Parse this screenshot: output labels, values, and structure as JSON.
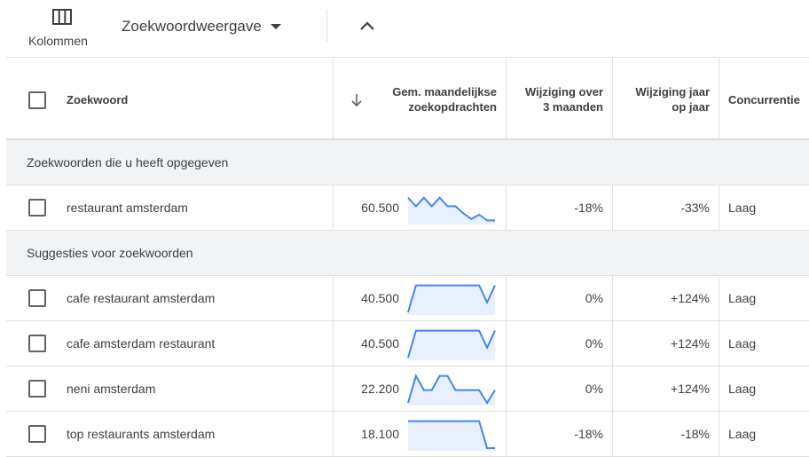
{
  "toolbar": {
    "columns_label": "Kolommen",
    "columns_icon": "columns-icon",
    "view_label": "Zoekwoordweergave",
    "view_icon": "dropdown-caret-icon",
    "collapse_icon": "chevron-up-icon"
  },
  "table": {
    "headers": {
      "keyword": "Zoekwoord",
      "sort_icon": "arrow-down-icon",
      "searches_line1": "Gem. maandelijkse",
      "searches_line2": "zoekopdrachten",
      "three_month_line1": "Wijziging over",
      "three_month_line2": "3 maanden",
      "yoy_line1": "Wijziging jaar",
      "yoy_line2": "op jaar",
      "competition": "Concurrentie"
    },
    "groups": [
      {
        "title": "Zoekwoorden die u heeft opgegeven",
        "rows": [
          {
            "keyword": "restaurant amsterdam",
            "searches": "60.500",
            "trend": [
              0.85,
              0.55,
              0.85,
              0.55,
              0.85,
              0.55,
              0.55,
              0.3,
              0.1,
              0.25,
              0.05,
              0.05
            ],
            "three_month": "-18%",
            "yoy": "-33%",
            "competition": "Laag"
          }
        ]
      },
      {
        "title": "Suggesties voor zoekwoorden",
        "rows": [
          {
            "keyword": "cafe restaurant amsterdam",
            "searches": "40.500",
            "trend": [
              0.0,
              0.95,
              0.95,
              0.95,
              0.95,
              0.95,
              0.95,
              0.95,
              0.95,
              0.95,
              0.35,
              0.95
            ],
            "three_month": "0%",
            "yoy": "+124%",
            "competition": "Laag"
          },
          {
            "keyword": "cafe amsterdam restaurant",
            "searches": "40.500",
            "trend": [
              0.0,
              0.95,
              0.95,
              0.95,
              0.95,
              0.95,
              0.95,
              0.95,
              0.95,
              0.95,
              0.35,
              0.95
            ],
            "three_month": "0%",
            "yoy": "+124%",
            "competition": "Laag"
          },
          {
            "keyword": "neni amsterdam",
            "searches": "22.200",
            "trend": [
              0.0,
              0.95,
              0.45,
              0.45,
              0.95,
              0.95,
              0.45,
              0.45,
              0.45,
              0.45,
              0.0,
              0.45
            ],
            "three_month": "0%",
            "yoy": "+124%",
            "competition": "Laag"
          },
          {
            "keyword": "top restaurants amsterdam",
            "searches": "18.100",
            "trend": [
              0.95,
              0.95,
              0.95,
              0.95,
              0.95,
              0.95,
              0.95,
              0.95,
              0.95,
              0.95,
              0.0,
              0.0
            ],
            "three_month": "-18%",
            "yoy": "-18%",
            "competition": "Laag"
          }
        ]
      }
    ]
  },
  "colors": {
    "spark_line": "#4285f4",
    "spark_fill": "#e8f0fe",
    "group_bg": "#f1f3f4"
  }
}
